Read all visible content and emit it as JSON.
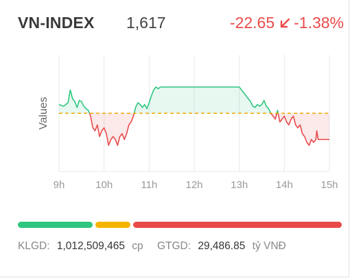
{
  "header": {
    "index_name": "VN-INDEX",
    "index_value": "1,617",
    "change_points": "-22.65",
    "change_percent": "-1.38%",
    "arrow_icon": "arrow-down-left-icon"
  },
  "chart_data": {
    "type": "line",
    "ylabel": "Values",
    "x_ticks": [
      "9h",
      "10h",
      "11h",
      "12h",
      "13h",
      "14h",
      "15h"
    ],
    "reference": 0,
    "reference_color": "#f0a500",
    "up_color": "#2fc680",
    "down_color": "#e94a4a",
    "ylim": [
      -100,
      100
    ],
    "series": [
      {
        "x": [
          9.0,
          9.1,
          9.2,
          9.25,
          9.3,
          9.35,
          9.4,
          9.45,
          9.5,
          9.55,
          9.6,
          9.65,
          9.7,
          9.75,
          9.8,
          9.85,
          9.9,
          9.95,
          10.0,
          10.05,
          10.1,
          10.15,
          10.2,
          10.25,
          10.3,
          10.35,
          10.4,
          10.45,
          10.5,
          10.55,
          10.6,
          10.65,
          10.7,
          10.75,
          10.8,
          10.85,
          10.9,
          10.95,
          11.0,
          11.05,
          11.1,
          11.15,
          11.2,
          11.25,
          11.3,
          11.35,
          11.4,
          11.45,
          11.5,
          11.6,
          11.7,
          11.8,
          11.9,
          12.0,
          12.5,
          13.0,
          13.05,
          13.1,
          13.15,
          13.2,
          13.25,
          13.3,
          13.35,
          13.4,
          13.45,
          13.5,
          13.55,
          13.6,
          13.65,
          13.7,
          13.75,
          13.8,
          13.85,
          13.9,
          13.95,
          14.0,
          14.05,
          14.1,
          14.15,
          14.2,
          14.25,
          14.3,
          14.35,
          14.4,
          14.45,
          14.5,
          14.55,
          14.6,
          14.65,
          14.7,
          14.72,
          14.75,
          15.0
        ],
        "values": [
          15,
          12,
          18,
          40,
          25,
          20,
          10,
          22,
          20,
          12,
          8,
          5,
          -5,
          -25,
          -30,
          -20,
          -40,
          -30,
          -25,
          -35,
          -55,
          -45,
          -40,
          -45,
          -55,
          -40,
          -35,
          -45,
          -35,
          -20,
          -15,
          -5,
          10,
          18,
          15,
          10,
          15,
          8,
          18,
          30,
          40,
          45,
          42,
          45,
          45,
          45,
          45,
          45,
          45,
          45,
          45,
          45,
          45,
          45,
          45,
          45,
          40,
          35,
          30,
          25,
          20,
          12,
          10,
          15,
          12,
          15,
          22,
          12,
          8,
          0,
          -5,
          -10,
          5,
          -15,
          -10,
          -5,
          -15,
          -20,
          -10,
          -5,
          -20,
          -25,
          -20,
          -35,
          -40,
          -50,
          -55,
          -45,
          -50,
          -45,
          -30,
          -45,
          -45
        ]
      }
    ]
  },
  "progress": {
    "segments": [
      {
        "label": "up",
        "fraction": 0.24,
        "color": "#2fc680"
      },
      {
        "label": "unchanged",
        "fraction": 0.115,
        "color": "#f5b400"
      },
      {
        "label": "down",
        "fraction": 0.645,
        "color": "#e94a4a"
      }
    ]
  },
  "footer": {
    "klgd_label": "KLGD:",
    "klgd_value": "1,012,509,465",
    "klgd_unit": "cp",
    "gtgd_label": "GTGD:",
    "gtgd_value": "29,486.85",
    "gtgd_unit": "tỷ VNĐ"
  }
}
